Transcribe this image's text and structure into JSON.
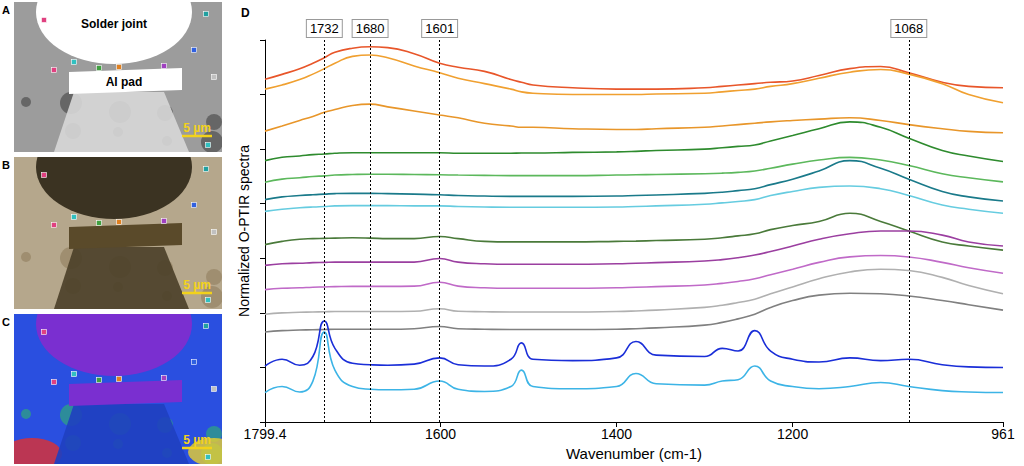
{
  "panels": [
    {
      "letter": "A",
      "labels": [
        "Solder joint",
        "Al pad"
      ],
      "scale_bar": "5 µm"
    },
    {
      "letter": "B",
      "scale_bar": "5 µm"
    },
    {
      "letter": "C",
      "scale_bar": "5 µm"
    }
  ],
  "chart_data": {
    "type": "line",
    "panel": "D",
    "x_label": "Wavenumber (cm-1)",
    "y_label": "Normalized O-PTIR spectra",
    "xlim": [
      1799.4,
      961
    ],
    "xticks": [
      1799.4,
      1600,
      1400,
      1200,
      961
    ],
    "ylim": [
      0,
      14
    ],
    "yticks": [
      0,
      2,
      4,
      6,
      8,
      10,
      12,
      14
    ],
    "tick_labels": "x",
    "grid": false,
    "annotations": [
      {
        "x": 1732,
        "label": "1732"
      },
      {
        "x": 1680,
        "label": "1680"
      },
      {
        "x": 1601,
        "label": "1601"
      },
      {
        "x": 1068,
        "label": "1068"
      }
    ],
    "x": [
      1799.4,
      1780,
      1760,
      1745,
      1732,
      1720,
      1700,
      1680,
      1660,
      1630,
      1601,
      1580,
      1550,
      1520,
      1508,
      1495,
      1450,
      1400,
      1378,
      1355,
      1300,
      1280,
      1262,
      1243,
      1225,
      1200,
      1170,
      1135,
      1100,
      1068,
      1030,
      1000,
      961
    ],
    "series": [
      {
        "color": "#e8562a",
        "values": [
          12.56,
          12.74,
          12.95,
          13.15,
          13.35,
          13.55,
          13.7,
          13.75,
          13.72,
          13.5,
          13.15,
          13.0,
          12.85,
          12.55,
          12.45,
          12.35,
          12.25,
          12.2,
          12.2,
          12.2,
          12.25,
          12.3,
          12.35,
          12.4,
          12.45,
          12.5,
          12.7,
          12.95,
          13.03,
          12.8,
          12.45,
          12.3,
          12.25
        ]
      },
      {
        "color": "#f0a030",
        "values": [
          12.2,
          12.35,
          12.55,
          12.75,
          12.95,
          13.15,
          13.4,
          13.45,
          13.35,
          13.05,
          12.8,
          12.6,
          12.4,
          12.2,
          12.1,
          12.05,
          12.0,
          12.0,
          12.0,
          12.02,
          12.05,
          12.1,
          12.15,
          12.2,
          12.3,
          12.4,
          12.6,
          12.82,
          12.92,
          12.75,
          12.4,
          12.0,
          11.7
        ]
      },
      {
        "color": "#e8962a",
        "values": [
          10.66,
          10.85,
          11.05,
          11.2,
          11.35,
          11.45,
          11.6,
          11.65,
          11.55,
          11.4,
          11.25,
          11.15,
          10.95,
          10.85,
          10.8,
          10.8,
          10.75,
          10.72,
          10.72,
          10.75,
          10.8,
          10.85,
          10.9,
          10.95,
          11.0,
          11.05,
          11.1,
          11.15,
          11.05,
          10.9,
          10.75,
          10.65,
          10.6
        ]
      },
      {
        "color": "#2e8b2e",
        "values": [
          9.58,
          9.7,
          9.75,
          9.8,
          9.82,
          9.85,
          9.87,
          9.87,
          9.87,
          9.87,
          9.87,
          9.85,
          9.85,
          9.85,
          9.86,
          9.86,
          9.88,
          9.9,
          9.92,
          9.95,
          10.0,
          10.05,
          10.1,
          10.15,
          10.3,
          10.5,
          10.75,
          11.0,
          10.8,
          10.4,
          9.95,
          9.75,
          9.55
        ]
      },
      {
        "color": "#5cb85c",
        "values": [
          8.79,
          8.9,
          8.95,
          9.0,
          9.02,
          9.05,
          9.07,
          9.08,
          9.08,
          9.07,
          9.06,
          9.05,
          9.04,
          9.03,
          9.03,
          9.03,
          9.03,
          9.05,
          9.06,
          9.07,
          9.1,
          9.12,
          9.15,
          9.2,
          9.3,
          9.45,
          9.6,
          9.7,
          9.6,
          9.4,
          9.1,
          8.95,
          8.8
        ]
      },
      {
        "color": "#1a7a8a",
        "values": [
          8.15,
          8.25,
          8.3,
          8.33,
          8.35,
          8.37,
          8.38,
          8.38,
          8.37,
          8.35,
          8.33,
          8.3,
          8.28,
          8.27,
          8.27,
          8.27,
          8.27,
          8.28,
          8.3,
          8.32,
          8.38,
          8.42,
          8.48,
          8.55,
          8.7,
          8.9,
          9.2,
          9.58,
          9.3,
          8.9,
          8.45,
          8.25,
          8.1
        ]
      },
      {
        "color": "#66cce0",
        "values": [
          7.72,
          7.8,
          7.85,
          7.88,
          7.9,
          7.92,
          7.93,
          7.93,
          7.93,
          7.92,
          7.92,
          7.9,
          7.88,
          7.87,
          7.87,
          7.87,
          7.87,
          7.88,
          7.9,
          7.92,
          7.98,
          8.03,
          8.08,
          8.15,
          8.3,
          8.45,
          8.6,
          8.65,
          8.55,
          8.3,
          7.95,
          7.8,
          7.65
        ]
      },
      {
        "color": "#4a7a3a",
        "values": [
          6.5,
          6.62,
          6.7,
          6.72,
          6.73,
          6.74,
          6.75,
          6.74,
          6.72,
          6.72,
          6.8,
          6.72,
          6.62,
          6.6,
          6.6,
          6.6,
          6.6,
          6.62,
          6.63,
          6.65,
          6.7,
          6.75,
          6.82,
          6.9,
          7.05,
          7.2,
          7.35,
          7.65,
          7.35,
          7.0,
          6.6,
          6.45,
          6.3
        ]
      },
      {
        "color": "#9b3fa0",
        "values": [
          5.74,
          5.8,
          5.82,
          5.84,
          5.85,
          5.86,
          5.86,
          5.86,
          5.86,
          5.86,
          5.99,
          5.86,
          5.8,
          5.78,
          5.78,
          5.78,
          5.78,
          5.8,
          5.82,
          5.84,
          5.9,
          5.95,
          6.02,
          6.12,
          6.25,
          6.45,
          6.7,
          6.9,
          7.0,
          7.0,
          6.85,
          6.6,
          6.45
        ]
      },
      {
        "color": "#c06ac8",
        "values": [
          4.85,
          4.9,
          4.92,
          4.94,
          4.95,
          4.96,
          4.97,
          4.97,
          4.97,
          4.98,
          5.12,
          4.98,
          4.92,
          4.9,
          4.9,
          4.9,
          4.9,
          4.92,
          4.94,
          4.96,
          5.02,
          5.08,
          5.15,
          5.25,
          5.4,
          5.6,
          5.85,
          6.05,
          6.1,
          6.05,
          5.85,
          5.65,
          5.45
        ]
      },
      {
        "color": "#b0b0b0",
        "values": [
          3.95,
          4.0,
          4.02,
          4.03,
          4.04,
          4.05,
          4.05,
          4.05,
          4.05,
          4.06,
          4.15,
          4.06,
          4.04,
          4.03,
          4.03,
          4.03,
          4.03,
          4.05,
          4.07,
          4.1,
          4.2,
          4.28,
          4.38,
          4.5,
          4.7,
          4.95,
          5.25,
          5.5,
          5.6,
          5.55,
          5.3,
          5.0,
          4.7
        ]
      },
      {
        "color": "#808080",
        "values": [
          3.3,
          3.35,
          3.37,
          3.38,
          3.39,
          3.4,
          3.4,
          3.4,
          3.4,
          3.42,
          3.5,
          3.42,
          3.4,
          3.39,
          3.39,
          3.39,
          3.39,
          3.4,
          3.42,
          3.45,
          3.55,
          3.65,
          3.78,
          3.95,
          4.2,
          4.45,
          4.65,
          4.72,
          4.7,
          4.62,
          4.45,
          4.3,
          4.1
        ]
      },
      {
        "color": "#1a2ed8",
        "values": [
          2.05,
          2.3,
          2.08,
          2.4,
          3.7,
          2.7,
          2.15,
          2.1,
          2.08,
          2.12,
          2.35,
          2.1,
          2.05,
          2.3,
          2.9,
          2.3,
          2.25,
          2.35,
          2.95,
          2.45,
          2.4,
          2.7,
          2.6,
          3.35,
          2.6,
          2.3,
          2.2,
          2.35,
          2.25,
          2.3,
          2.1,
          2.02,
          2.0
        ]
      },
      {
        "color": "#3cb4e6",
        "values": [
          1.08,
          1.3,
          1.1,
          1.5,
          3.3,
          1.9,
          1.3,
          1.2,
          1.18,
          1.2,
          1.5,
          1.2,
          1.12,
          1.3,
          1.9,
          1.3,
          1.22,
          1.3,
          1.78,
          1.4,
          1.35,
          1.5,
          1.55,
          2.05,
          1.5,
          1.3,
          1.22,
          1.3,
          1.45,
          1.3,
          1.15,
          1.1,
          1.08
        ]
      }
    ]
  }
}
